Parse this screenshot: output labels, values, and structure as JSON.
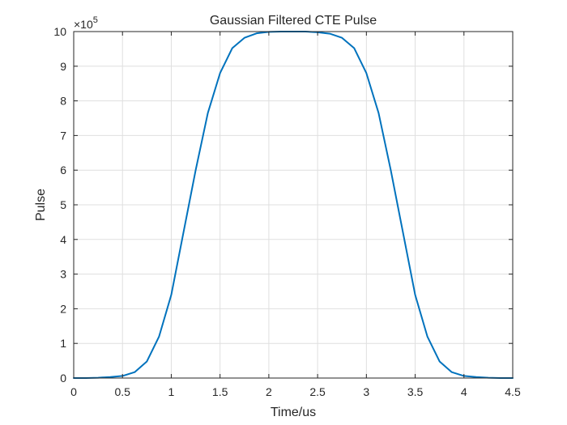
{
  "colors": {
    "line": "#0072BD",
    "axis": "#262626",
    "grid": "#DFDFDF",
    "background": "#FFFFFF"
  },
  "chart_data": {
    "type": "line",
    "title": "Gaussian Filtered CTE Pulse",
    "xlabel": "Time/us",
    "ylabel": "Pulse",
    "y_exponent_label": "×10",
    "y_exponent_power": "5",
    "xlim": [
      0,
      4.5
    ],
    "ylim": [
      0,
      10
    ],
    "xticks": [
      0,
      0.5,
      1,
      1.5,
      2,
      2.5,
      3,
      3.5,
      4,
      4.5
    ],
    "xtick_labels": [
      "0",
      "0.5",
      "1",
      "1.5",
      "2",
      "2.5",
      "3",
      "3.5",
      "4",
      "4.5"
    ],
    "yticks": [
      0,
      1,
      2,
      3,
      4,
      5,
      6,
      7,
      8,
      9,
      10
    ],
    "ytick_labels": [
      "0",
      "1",
      "2",
      "3",
      "4",
      "5",
      "6",
      "7",
      "8",
      "9",
      "10"
    ],
    "grid": true,
    "box": true,
    "series": [
      {
        "x": [
          0,
          0.125,
          0.25,
          0.375,
          0.5,
          0.625,
          0.75,
          0.875,
          1.0,
          1.125,
          1.25,
          1.375,
          1.5,
          1.625,
          1.75,
          1.875,
          2.0,
          2.125,
          2.25,
          2.375,
          2.5,
          2.625,
          2.75,
          2.875,
          3.0,
          3.125,
          3.25,
          3.375,
          3.5,
          3.625,
          3.75,
          3.875,
          4.0,
          4.125,
          4.25,
          4.375,
          4.5
        ],
        "y": [
          0,
          0,
          0.01,
          0.03,
          0.06,
          0.17,
          0.48,
          1.2,
          2.4,
          4.2,
          6.0,
          7.65,
          8.8,
          9.52,
          9.82,
          9.95,
          9.99,
          10.0,
          10.0,
          10.0,
          9.98,
          9.94,
          9.82,
          9.52,
          8.8,
          7.65,
          6.0,
          4.2,
          2.4,
          1.2,
          0.48,
          0.17,
          0.06,
          0.03,
          0.01,
          0,
          0
        ]
      }
    ]
  }
}
